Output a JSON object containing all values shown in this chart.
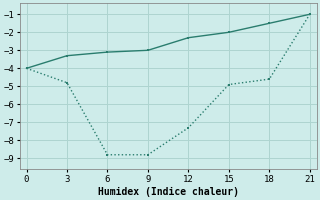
{
  "line1_x": [
    0,
    3,
    6,
    9,
    12,
    15,
    18,
    21
  ],
  "line1_y": [
    -4.0,
    -3.3,
    -3.1,
    -3.0,
    -2.3,
    -2.0,
    -1.5,
    -1.0
  ],
  "line2_x": [
    0,
    3,
    6,
    9,
    12,
    15,
    18,
    21
  ],
  "line2_y": [
    -4.0,
    -4.8,
    -8.8,
    -8.8,
    -7.3,
    -4.9,
    -4.6,
    -1.0
  ],
  "line_color": "#2a7d6e",
  "bg_color": "#ceecea",
  "grid_color": "#aed4d0",
  "xlabel": "Humidex (Indice chaleur)",
  "xlim": [
    -0.5,
    21.5
  ],
  "ylim": [
    -9.6,
    -0.4
  ],
  "xticks": [
    0,
    3,
    6,
    9,
    12,
    15,
    18,
    21
  ],
  "yticks": [
    -1,
    -2,
    -3,
    -4,
    -5,
    -6,
    -7,
    -8,
    -9
  ],
  "tick_fontsize": 6.5,
  "xlabel_fontsize": 7.0
}
